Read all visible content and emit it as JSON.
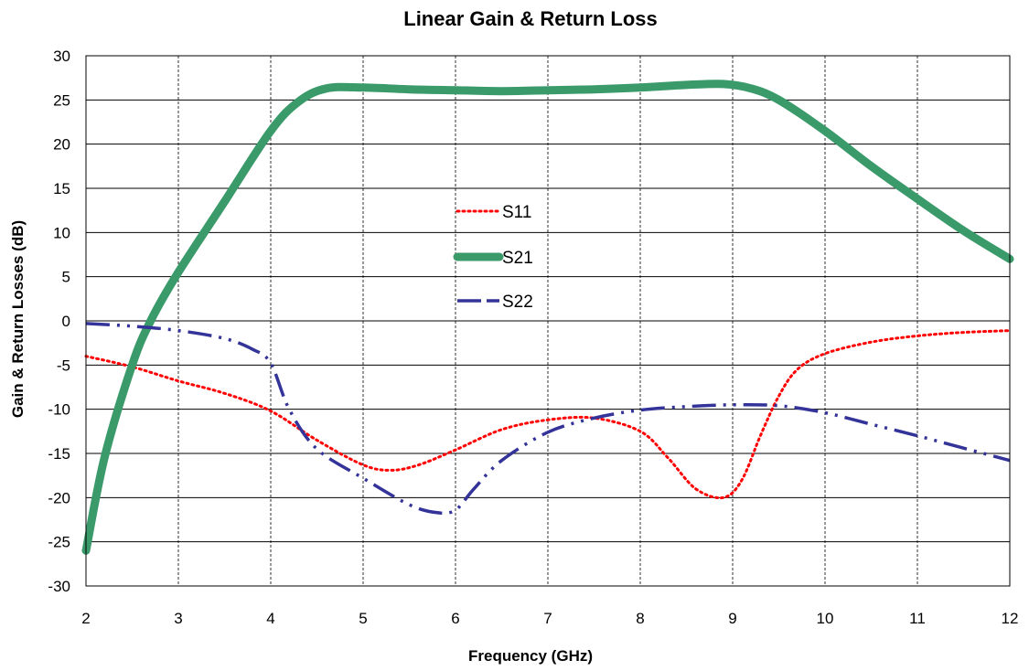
{
  "chart_data": {
    "type": "line",
    "title": "Linear Gain & Return Loss",
    "xlabel": "Frequency (GHz)",
    "ylabel": "Gain & Return Losses (dB)",
    "xlim": [
      2,
      12
    ],
    "ylim": [
      -30,
      30
    ],
    "xticks": [
      2,
      3,
      4,
      5,
      6,
      7,
      8,
      9,
      10,
      11,
      12
    ],
    "yticks": [
      30,
      25,
      20,
      15,
      10,
      5,
      0,
      -5,
      -10,
      -15,
      -20,
      -25,
      -30
    ],
    "grid": {
      "x": "dashed",
      "y": "solid"
    },
    "legend_position": "center",
    "series": [
      {
        "name": "S11",
        "color": "#ff0000",
        "style": "dotted",
        "x": [
          2,
          2.5,
          3,
          3.5,
          4,
          4.5,
          5,
          5.3,
          5.6,
          6,
          6.5,
          7,
          7.5,
          8,
          8.3,
          8.6,
          8.9,
          9.1,
          9.3,
          9.5,
          9.7,
          10,
          10.5,
          11,
          11.5,
          12
        ],
        "y": [
          -4,
          -5.2,
          -6.8,
          -8.2,
          -10.2,
          -13.5,
          -16.3,
          -16.9,
          -16.3,
          -14.6,
          -12.3,
          -11.2,
          -11.0,
          -12.5,
          -15.5,
          -19,
          -20,
          -18,
          -13,
          -8.5,
          -5.5,
          -3.7,
          -2.4,
          -1.7,
          -1.3,
          -1.1
        ]
      },
      {
        "name": "S21",
        "color": "#3a9a6a",
        "style": "solid",
        "x": [
          2,
          2.2,
          2.5,
          2.7,
          3,
          3.5,
          4,
          4.3,
          4.6,
          5,
          5.5,
          6,
          6.5,
          7,
          7.5,
          8,
          8.5,
          8.9,
          9.2,
          9.5,
          10,
          10.5,
          11,
          11.5,
          12
        ],
        "y": [
          -26,
          -15.5,
          -5,
          0,
          5.5,
          13.5,
          21.5,
          24.8,
          26.3,
          26.4,
          26.2,
          26.1,
          26.0,
          26.1,
          26.2,
          26.4,
          26.7,
          26.8,
          26.3,
          25,
          21.5,
          17.5,
          13.8,
          10.2,
          7
        ]
      },
      {
        "name": "S22",
        "color": "#333399",
        "style": "dash-dot",
        "x": [
          2,
          2.5,
          3,
          3.5,
          3.8,
          4,
          4.2,
          4.5,
          5,
          5.5,
          5.8,
          6,
          6.2,
          6.5,
          7,
          7.5,
          8,
          8.5,
          9,
          9.5,
          10,
          10.5,
          11,
          11.5,
          12
        ],
        "y": [
          -0.3,
          -0.6,
          -1.1,
          -2,
          -3.2,
          -4.8,
          -10,
          -14.5,
          -17.8,
          -20.8,
          -21.7,
          -21.4,
          -19,
          -15.8,
          -12.6,
          -11,
          -10.1,
          -9.7,
          -9.5,
          -9.6,
          -10.4,
          -11.7,
          -13,
          -14.4,
          -15.8
        ]
      }
    ]
  }
}
